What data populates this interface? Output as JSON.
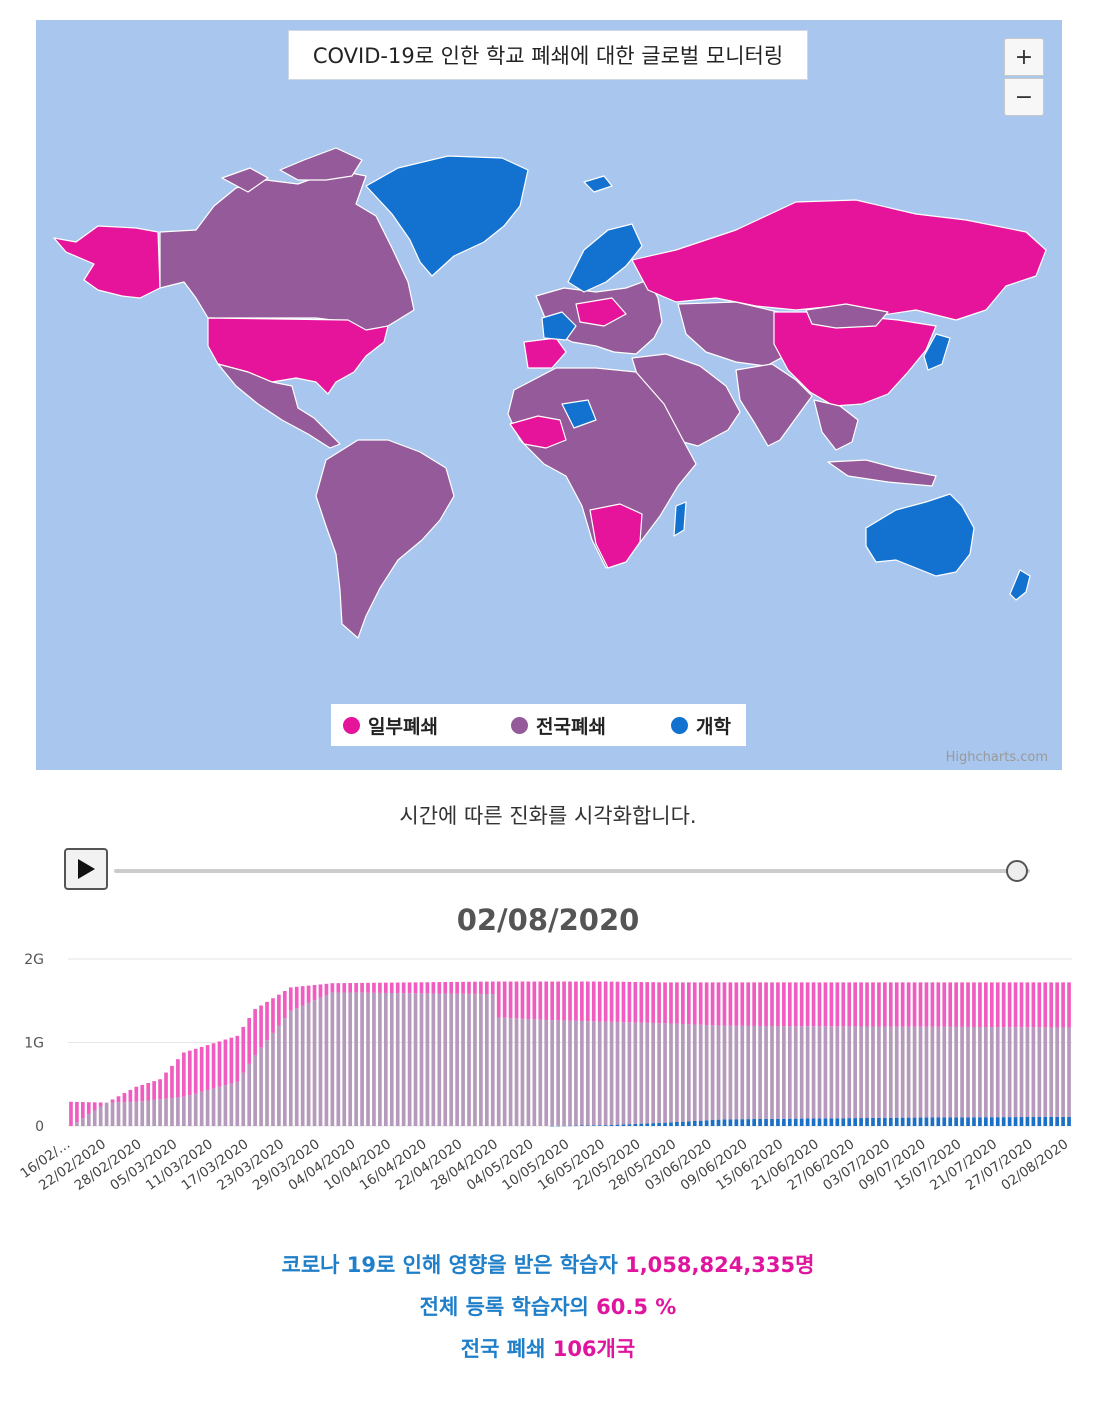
{
  "map": {
    "title": "COVID-19로 인한 학교 폐쇄에 대한 글로벌 모니터링",
    "zoom_in_label": "+",
    "zoom_out_label": "−",
    "credit": "Highcharts.com",
    "legend": [
      {
        "label": "일부폐쇄",
        "color": "#e6139b"
      },
      {
        "label": "전국폐쇄",
        "color": "#955a99"
      },
      {
        "label": "개학",
        "color": "#1372d0"
      }
    ],
    "ocean_color": "#a9c7ee",
    "regions": [
      {
        "name": "Alaska",
        "status": "일부폐쇄"
      },
      {
        "name": "Canada",
        "status": "전국폐쇄"
      },
      {
        "name": "United States",
        "status": "일부폐쇄"
      },
      {
        "name": "Mexico",
        "status": "전국폐쇄"
      },
      {
        "name": "Greenland",
        "status": "개학"
      },
      {
        "name": "South America",
        "status": "전국폐쇄"
      },
      {
        "name": "Europe",
        "status": "전국폐쇄"
      },
      {
        "name": "Scandinavia",
        "status": "개학"
      },
      {
        "name": "France",
        "status": "개학"
      },
      {
        "name": "Russia",
        "status": "일부폐쇄"
      },
      {
        "name": "China",
        "status": "일부폐쇄"
      },
      {
        "name": "Africa",
        "status": "전국폐쇄"
      },
      {
        "name": "Southern Africa",
        "status": "일부폐쇄"
      },
      {
        "name": "Middle East",
        "status": "전국폐쇄"
      },
      {
        "name": "India",
        "status": "전국폐쇄"
      },
      {
        "name": "Australia",
        "status": "개학"
      },
      {
        "name": "New Zealand",
        "status": "개학"
      }
    ]
  },
  "timeline": {
    "caption": "시간에 따른 진화를 시각화합니다.",
    "play_icon": "play-icon",
    "slider_position": 1.0,
    "current_date": "02/08/2020"
  },
  "chart_data": {
    "type": "bar",
    "stacked": true,
    "y_ticks": [
      "0",
      "1G",
      "2G"
    ],
    "ylim": [
      0,
      2000000000
    ],
    "x_tick_labels": [
      "16/02/…",
      "22/02/2020",
      "28/02/2020",
      "05/03/2020",
      "11/03/2020",
      "17/03/2020",
      "23/03/2020",
      "29/03/2020",
      "04/04/2020",
      "10/04/2020",
      "16/04/2020",
      "22/04/2020",
      "28/04/2020",
      "04/05/2020",
      "10/05/2020",
      "16/05/2020",
      "22/05/2020",
      "28/05/2020",
      "03/06/2020",
      "09/06/2020",
      "15/06/2020",
      "21/06/2020",
      "27/06/2020",
      "03/07/2020",
      "09/07/2020",
      "15/07/2020",
      "21/07/2020",
      "27/07/2020",
      "02/08/2020"
    ],
    "series_colors": {
      "일부폐쇄": "#f05dc0",
      "전국폐쇄": "#b69abc",
      "개학": "#1b6fc6"
    },
    "start_date": "2020-02-16",
    "end_date": "2020-08-02",
    "keyframes": [
      {
        "day": 0,
        "open": 0,
        "national": 0,
        "partial": 290000000
      },
      {
        "day": 6,
        "open": 0,
        "national": 280000000,
        "partial": 0
      },
      {
        "day": 11,
        "open": 0,
        "national": 290000000,
        "partial": 180000000
      },
      {
        "day": 15,
        "open": 0,
        "national": 320000000,
        "partial": 240000000
      },
      {
        "day": 19,
        "open": 0,
        "national": 350000000,
        "partial": 530000000
      },
      {
        "day": 28,
        "open": 0,
        "national": 530000000,
        "partial": 550000000
      },
      {
        "day": 31,
        "open": 0,
        "national": 850000000,
        "partial": 550000000
      },
      {
        "day": 37,
        "open": 0,
        "national": 1380000000,
        "partial": 280000000
      },
      {
        "day": 44,
        "open": 0,
        "national": 1600000000,
        "partial": 110000000
      },
      {
        "day": 71,
        "open": 0,
        "national": 1580000000,
        "partial": 150000000
      },
      {
        "day": 72,
        "open": 0,
        "national": 1300000000,
        "partial": 430000000
      },
      {
        "day": 80,
        "open": 0,
        "national": 1270000000,
        "partial": 460000000
      },
      {
        "day": 90,
        "open": 10000000,
        "national": 1240000000,
        "partial": 480000000
      },
      {
        "day": 100,
        "open": 40000000,
        "national": 1190000000,
        "partial": 490000000
      },
      {
        "day": 110,
        "open": 80000000,
        "national": 1120000000,
        "partial": 520000000
      },
      {
        "day": 140,
        "open": 100000000,
        "national": 1090000000,
        "partial": 530000000
      },
      {
        "day": 168,
        "open": 110000000,
        "national": 1070000000,
        "partial": 540000000
      }
    ]
  },
  "stats": {
    "line1_label": "코로나 19로 인해 영향을 받은 학습자",
    "line1_value": "1,058,824,335명",
    "line2_label": "전체 등록 학습자의",
    "line2_value": "60.5 %",
    "line3_label": "전국 폐쇄",
    "line3_value": "106개국"
  }
}
